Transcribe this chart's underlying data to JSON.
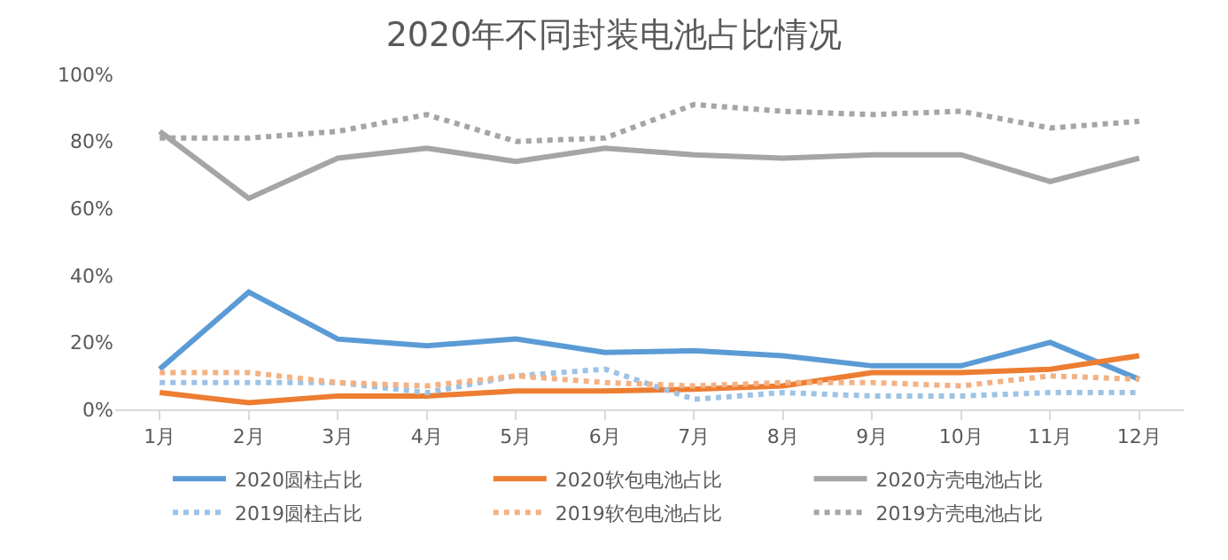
{
  "chart_data": {
    "type": "line",
    "title": "2020年不同封装电池占比情况",
    "categories": [
      "1月",
      "2月",
      "3月",
      "4月",
      "5月",
      "6月",
      "7月",
      "8月",
      "9月",
      "10月",
      "11月",
      "12月"
    ],
    "ylim": [
      0,
      100
    ],
    "yticks": [
      {
        "value": 0,
        "label": "0%"
      },
      {
        "value": 20,
        "label": "20%"
      },
      {
        "value": 40,
        "label": "40%"
      },
      {
        "value": 60,
        "label": "60%"
      },
      {
        "value": 80,
        "label": "80%"
      },
      {
        "value": 100,
        "label": "100%"
      }
    ],
    "grid": false,
    "legend": "bottom",
    "marker": "none",
    "series": [
      {
        "name": "2020圆柱占比",
        "color": "#5b9bd5",
        "line_style": "solid",
        "values": [
          12,
          35,
          21,
          19,
          21,
          17,
          17.5,
          16,
          13,
          13,
          20,
          9
        ]
      },
      {
        "name": "2020软包电池占比",
        "color": "#ed7d31",
        "line_style": "solid",
        "values": [
          5,
          2,
          4,
          4,
          5.5,
          5.5,
          6,
          7,
          11,
          11,
          12,
          16
        ]
      },
      {
        "name": "2020方壳电池占比",
        "color": "#a5a5a5",
        "line_style": "solid",
        "values": [
          83,
          63,
          75,
          78,
          74,
          78,
          76,
          75,
          76,
          76,
          68,
          75
        ]
      },
      {
        "name": "2019圆柱占比",
        "color": "#9dc3e6",
        "line_style": "dotted",
        "values": [
          8,
          8,
          8,
          5,
          10,
          12,
          3,
          5,
          4,
          4,
          5,
          5
        ]
      },
      {
        "name": "2019软包电池占比",
        "color": "#f4b183",
        "line_style": "dotted",
        "values": [
          11,
          11,
          8,
          7,
          10,
          8,
          7,
          8,
          8,
          7,
          10,
          9
        ]
      },
      {
        "name": "2019方壳电池占比",
        "color": "#a5a5a5",
        "line_style": "dotted",
        "values": [
          81,
          81,
          83,
          88,
          80,
          81,
          91,
          89,
          88,
          89,
          84,
          86
        ]
      }
    ]
  }
}
